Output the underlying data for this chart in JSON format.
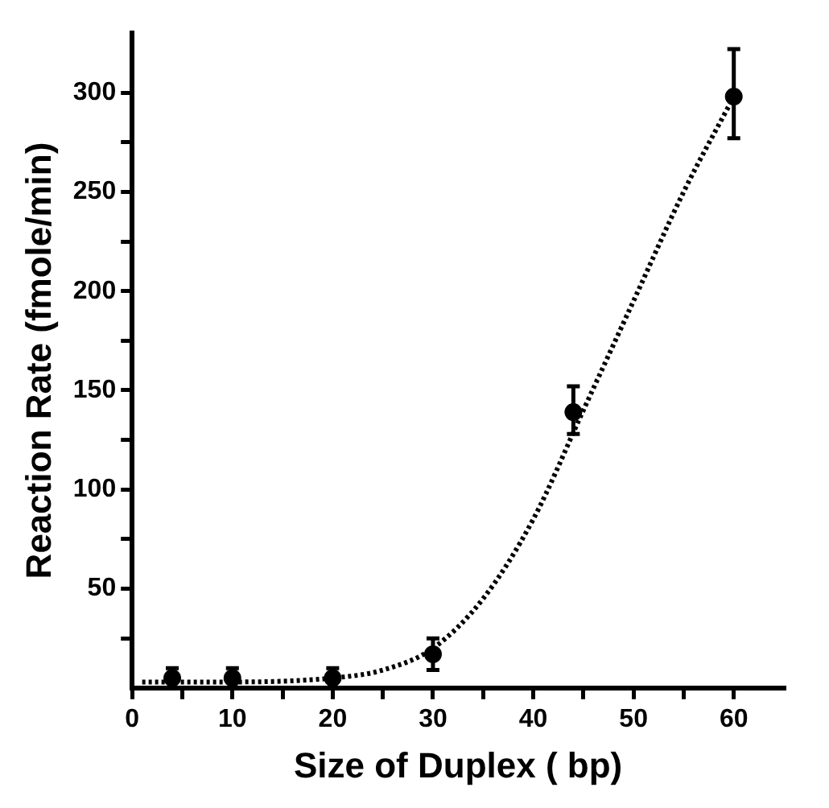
{
  "chart_data": {
    "type": "scatter",
    "xlabel": "Size of Duplex ( bp)",
    "ylabel": "Reaction Rate (fmole/min)",
    "xlim": [
      0,
      65
    ],
    "ylim": [
      0,
      330
    ],
    "xticks": [
      0,
      {
        "value": 5,
        "label": null
      },
      10,
      {
        "value": 15,
        "label": null
      },
      20,
      {
        "value": 25,
        "label": null
      },
      30,
      {
        "value": 35,
        "label": null
      },
      40,
      {
        "value": 45,
        "label": null
      },
      50,
      {
        "value": 55,
        "label": null
      },
      60
    ],
    "yticks": [
      {
        "value": 25,
        "label": null
      },
      50,
      {
        "value": 75,
        "label": null
      },
      100,
      {
        "value": 125,
        "label": null
      },
      150,
      {
        "value": 175,
        "label": null
      },
      200,
      {
        "value": 225,
        "label": null
      },
      250,
      {
        "value": 275,
        "label": null
      },
      300
    ],
    "grid": false,
    "legend": false,
    "series": [
      {
        "type": "scatter",
        "color": "#000000",
        "marker": "circle",
        "x": [
          4,
          10,
          20,
          30,
          44,
          60
        ],
        "values": [
          5,
          5,
          5,
          17,
          139,
          298
        ],
        "errors": [
          5,
          5,
          5,
          8,
          [
            128,
            152
          ],
          [
            277,
            322
          ]
        ]
      },
      {
        "type": "line",
        "color": "#000000",
        "marker": "none",
        "line_style": "dotted",
        "x": [
          1,
          10,
          20,
          25,
          30,
          35,
          40,
          45,
          50,
          55,
          60
        ],
        "values": [
          3,
          3,
          5,
          9,
          20,
          45,
          85,
          140,
          195,
          250,
          298
        ]
      }
    ]
  }
}
